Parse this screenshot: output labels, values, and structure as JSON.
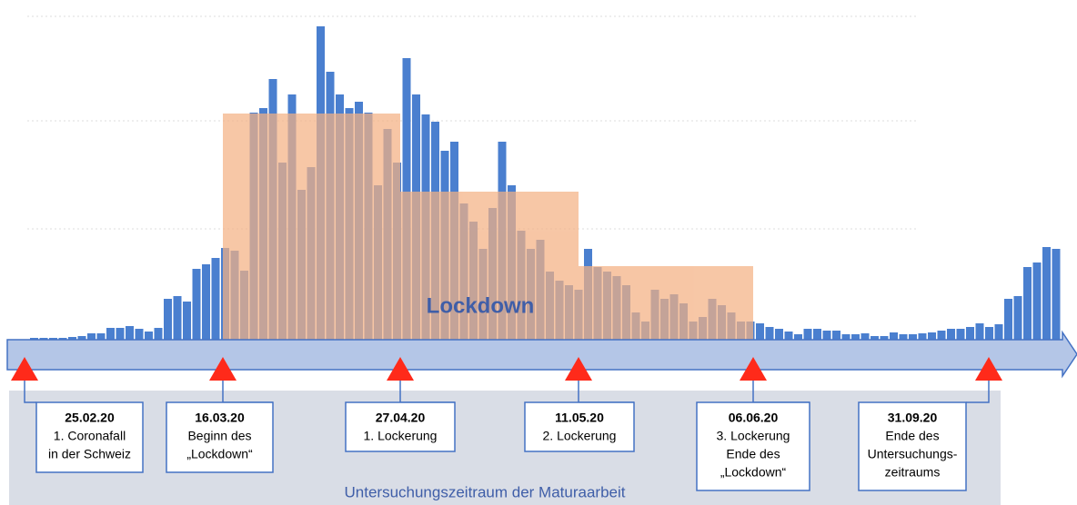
{
  "chart_data": {
    "type": "bar",
    "color": "#4a7fcf",
    "values": [
      2,
      2,
      2,
      2,
      3,
      4,
      7,
      7,
      13,
      13,
      15,
      12,
      9,
      13,
      45,
      48,
      42,
      78,
      83,
      90,
      101,
      98,
      76,
      250,
      255,
      287,
      195,
      270,
      165,
      190,
      345,
      295,
      270,
      255,
      262,
      250,
      170,
      232,
      195,
      310,
      270,
      248,
      240,
      208,
      218,
      150,
      130,
      100,
      145,
      218,
      170,
      120,
      100,
      110,
      75,
      65,
      60,
      55,
      100,
      80,
      75,
      70,
      60,
      30,
      20,
      55,
      45,
      50,
      40,
      20,
      25,
      45,
      38,
      30,
      20,
      20,
      18,
      14,
      12,
      9,
      6,
      12,
      12,
      10,
      10,
      6,
      6,
      7,
      4,
      4,
      8,
      6,
      6,
      7,
      8,
      10,
      12,
      12,
      14,
      18,
      14,
      17,
      45,
      48,
      80,
      85,
      102,
      100
    ],
    "overlay_label": "Lockdown",
    "period_label": "Untersuchungszeitraum der Maturaarbeit",
    "events": [
      {
        "date": "25.02.20",
        "lines": [
          "1. Coronafall",
          "in der Schweiz"
        ]
      },
      {
        "date": "16.03.20",
        "lines": [
          "Beginn des",
          "„Lockdown“"
        ]
      },
      {
        "date": "27.04.20",
        "lines": [
          "1. Lockerung"
        ]
      },
      {
        "date": "11.05.20",
        "lines": [
          "2. Lockerung"
        ]
      },
      {
        "date": "06.06.20",
        "lines": [
          "3. Lockerung",
          "Ende des",
          "„Lockdown“"
        ]
      },
      {
        "date": "31.09.20",
        "lines": [
          "Ende des",
          "Untersuchungs-",
          "zeitraums"
        ]
      }
    ]
  }
}
